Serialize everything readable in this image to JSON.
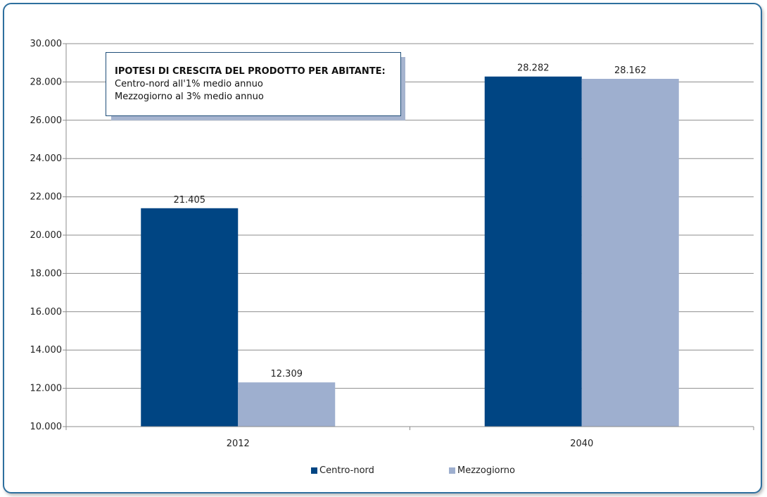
{
  "note": {
    "title": "IPOTESI DI CRESCITA DEL PRODOTTO PER ABITANTE:",
    "line1": "Centro-nord all'1% medio annuo",
    "line2": "Mezzogiorno al 3% medio annuo"
  },
  "legend": {
    "item1": "Centro-nord",
    "item2": "Mezzogiorno"
  },
  "chart_data": {
    "type": "bar",
    "categories": [
      "2012",
      "2040"
    ],
    "series": [
      {
        "name": "Centro-nord",
        "values": [
          21405,
          28282
        ],
        "labels": [
          "21.405",
          "28.282"
        ],
        "color": "#004583"
      },
      {
        "name": "Mezzogiorno",
        "values": [
          12309,
          28162
        ],
        "labels": [
          "12.309",
          "28.162"
        ],
        "color": "#9eafcf"
      }
    ],
    "ylim": [
      10000,
      30000
    ],
    "yticks": [
      "10.000",
      "12.000",
      "14.000",
      "16.000",
      "18.000",
      "20.000",
      "22.000",
      "24.000",
      "26.000",
      "28.000",
      "30.000"
    ],
    "grid": true,
    "legend_position": "bottom"
  }
}
